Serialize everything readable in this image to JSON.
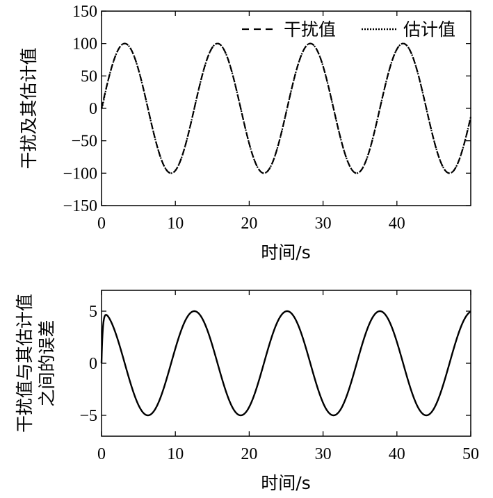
{
  "chart_data": [
    {
      "type": "line",
      "xlabel": "时间/s",
      "ylabel": "干扰及其估计值",
      "xlim": [
        0,
        50
      ],
      "ylim": [
        -150,
        150
      ],
      "xticks": [
        "0",
        "10",
        "20",
        "30",
        "40"
      ],
      "yticks": [
        "150",
        "100",
        "50",
        "0",
        "−50",
        "−100",
        "−150"
      ],
      "grid": false,
      "legend_position": "top-right",
      "series": [
        {
          "name": "干扰值",
          "style": "dashed",
          "color": "#000000",
          "function": "100*sin(0.5*t)",
          "amplitude": 100,
          "angular_frequency": 0.5
        },
        {
          "name": "估计值",
          "style": "dotted",
          "color": "#000000",
          "function": "100*sin(0.5*t) - 5*sin(0.5*t)*(1-exp(-6t)) (tracks disturbance)",
          "amplitude": 100,
          "angular_frequency": 0.5
        }
      ],
      "sample_points": {
        "x": [
          0,
          3.14,
          9.42,
          15.71,
          21.99,
          28.27,
          34.56,
          40.84,
          47.12,
          50
        ],
        "y": [
          0,
          100,
          -100,
          100,
          -100,
          100,
          -100,
          100,
          -100,
          -13
        ]
      }
    },
    {
      "type": "line",
      "xlabel": "时间/s",
      "ylabel": "干扰值与其估计值之间的误差",
      "ylabel_lines": [
        "干扰值与其估计值",
        "之间的误差"
      ],
      "xlim": [
        0,
        50
      ],
      "ylim": [
        -7,
        7
      ],
      "xticks": [
        "0",
        "10",
        "20",
        "30",
        "40",
        "50"
      ],
      "yticks": [
        "5",
        "0",
        "−5"
      ],
      "grid": false,
      "series": [
        {
          "name": "",
          "style": "solid",
          "color": "#000000",
          "function": "5*cos(0.5*t)*(1-exp(-6t))",
          "amplitude": 5,
          "angular_frequency": 0.5
        }
      ],
      "sample_points": {
        "x": [
          0,
          0.3,
          6.28,
          12.57,
          18.85,
          25.13,
          31.42,
          37.7,
          43.98,
          50
        ],
        "y": [
          0,
          4.9,
          -5,
          5,
          -5,
          5,
          -5,
          5,
          -5,
          4.96
        ]
      }
    }
  ]
}
